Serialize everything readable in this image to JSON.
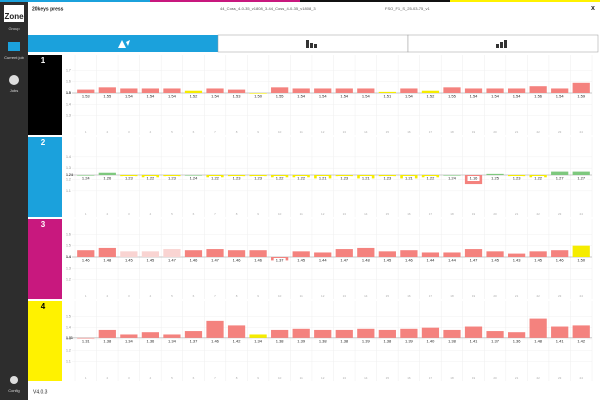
{
  "header": {
    "press": "20keys press",
    "file_1": "44_Coss_4-0-35_v1808_3-44_Coss_4-0-35_v1808_3",
    "file_2": "FSO_F1_S_25-03-75_v1",
    "close": "x"
  },
  "sidebar": {
    "logo": "Zone",
    "group": "Group",
    "current_job": "Current job",
    "jobs": "Jobs",
    "config": "Config",
    "version": "V4.0.3"
  },
  "zones": [
    1,
    2,
    3,
    4,
    5,
    6,
    7,
    8,
    9,
    10,
    11,
    12,
    13,
    14,
    15,
    16,
    17,
    18,
    19,
    20,
    21,
    22,
    23,
    24
  ],
  "bands": [
    {
      "label": "1",
      "color": "#000000",
      "target": 1.5,
      "ylim": [
        1.2,
        1.8
      ],
      "yticks": [
        1.3,
        1.4,
        1.5,
        1.6,
        1.7
      ],
      "values": [
        1.53,
        1.55,
        1.54,
        1.54,
        1.54,
        1.52,
        1.54,
        1.53,
        1.5,
        1.55,
        1.54,
        1.54,
        1.54,
        1.54,
        1.51,
        1.54,
        1.52,
        1.55,
        1.54,
        1.54,
        1.54,
        1.56,
        1.54,
        1.59
      ],
      "value_labels": [
        "1.53",
        "1.55",
        "1.54",
        "1.54",
        "1.54",
        "1.52",
        "1.54",
        "1.53",
        "1.50",
        "1.55",
        "1.54",
        "1.54",
        "1.54",
        "1.54",
        "1.51",
        "1.54",
        "1.52",
        "1.55",
        "1.54",
        "1.54",
        "1.54",
        "1.56",
        "1.54",
        "1.59"
      ],
      "bar_colors": [
        "#f4827e",
        "#f4827e",
        "#f4827e",
        "#f4827e",
        "#f4827e",
        "#f5ec00",
        "#f4827e",
        "#f4827e",
        "#f5ec00",
        "#f4827e",
        "#f4827e",
        "#f4827e",
        "#f4827e",
        "#f4827e",
        "#f5ec00",
        "#f4827e",
        "#f5ec00",
        "#f4827e",
        "#f4827e",
        "#f4827e",
        "#f4827e",
        "#f4827e",
        "#f4827e",
        "#f4827e"
      ]
    },
    {
      "label": "2",
      "color": "#1ba1dc",
      "target": 1.24,
      "ylim": [
        0.94,
        1.54
      ],
      "yticks": [
        1.1,
        1.2,
        1.3,
        1.4
      ],
      "values": [
        1.24,
        1.26,
        1.23,
        1.22,
        1.23,
        1.24,
        1.22,
        1.23,
        1.23,
        1.22,
        1.22,
        1.21,
        1.23,
        1.21,
        1.23,
        1.21,
        1.22,
        1.24,
        1.16,
        1.25,
        1.23,
        1.22,
        1.27,
        1.27
      ],
      "value_labels": [
        "1.24",
        "1.26",
        "1.23",
        "1.22",
        "1.23",
        "1.24",
        "1.22",
        "1.23",
        "1.23",
        "1.22",
        "1.22",
        "1.21",
        "1.23",
        "1.21",
        "1.23",
        "1.21",
        "1.22",
        "1.24",
        "1.16",
        "1.25",
        "1.23",
        "1.22",
        "1.27",
        "1.27"
      ],
      "bar_colors": [
        "#7ec87e",
        "#7ec87e",
        "#f5ec00",
        "#f5ec00",
        "#f5ec00",
        "#7ec87e",
        "#f5ec00",
        "#f5ec00",
        "#f5ec00",
        "#f5ec00",
        "#f5ec00",
        "#f5ec00",
        "#f5ec00",
        "#f5ec00",
        "#f5ec00",
        "#f5ec00",
        "#f5ec00",
        "#7ec87e",
        "#f4827e",
        "#7ec87e",
        "#f5ec00",
        "#f5ec00",
        "#7ec87e",
        "#7ec87e"
      ]
    },
    {
      "label": "3",
      "color": "#c8187e",
      "target": 1.4,
      "ylim": [
        1.1,
        1.7
      ],
      "yticks": [
        1.2,
        1.3,
        1.4,
        1.5,
        1.6
      ],
      "values": [
        1.46,
        1.48,
        1.45,
        1.45,
        1.47,
        1.46,
        1.47,
        1.46,
        1.46,
        1.37,
        1.45,
        1.44,
        1.47,
        1.48,
        1.45,
        1.46,
        1.44,
        1.44,
        1.47,
        1.45,
        1.43,
        1.45,
        1.46,
        1.5
      ],
      "value_labels": [
        "1.46",
        "1.48",
        "1.45",
        "1.45",
        "1.47",
        "1.46",
        "1.47",
        "1.46",
        "1.46",
        "1.37",
        "1.45",
        "1.44",
        "1.47",
        "1.48",
        "1.45",
        "1.46",
        "1.44",
        "1.44",
        "1.47",
        "1.45",
        "1.43",
        "1.45",
        "1.46",
        "1.50"
      ],
      "bar_colors": [
        "#f4827e",
        "#f4827e",
        "#f9d4d2",
        "#f9d4d2",
        "#f9d4d2",
        "#f4827e",
        "#f4827e",
        "#f4827e",
        "#f4827e",
        "#f4827e",
        "#f4827e",
        "#f4827e",
        "#f4827e",
        "#f4827e",
        "#f4827e",
        "#f4827e",
        "#f4827e",
        "#f4827e",
        "#f4827e",
        "#f4827e",
        "#f4827e",
        "#f4827e",
        "#f4827e",
        "#f5ec00"
      ]
    },
    {
      "label": "4",
      "color": "#fff200",
      "target": 1.31,
      "ylim": [
        1.0,
        1.6
      ],
      "yticks": [
        1.1,
        1.2,
        1.3,
        1.4,
        1.5
      ],
      "values": [
        1.31,
        1.38,
        1.34,
        1.36,
        1.34,
        1.37,
        1.46,
        1.42,
        1.34,
        1.38,
        1.39,
        1.38,
        1.38,
        1.39,
        1.38,
        1.39,
        1.4,
        1.38,
        1.41,
        1.37,
        1.36,
        1.48,
        1.41,
        1.42
      ],
      "value_labels": [
        "1.31",
        "1.38",
        "1.34",
        "1.36",
        "1.34",
        "1.37",
        "1.46",
        "1.42",
        "1.34",
        "1.38",
        "1.39",
        "1.38",
        "1.38",
        "1.39",
        "1.38",
        "1.39",
        "1.40",
        "1.38",
        "1.41",
        "1.37",
        "1.36",
        "1.48",
        "1.41",
        "1.42"
      ],
      "bar_colors": [
        "#f4827e",
        "#f4827e",
        "#f4827e",
        "#f4827e",
        "#f4827e",
        "#f4827e",
        "#f4827e",
        "#f4827e",
        "#f5ec00",
        "#f4827e",
        "#f4827e",
        "#f4827e",
        "#f4827e",
        "#f4827e",
        "#f4827e",
        "#f4827e",
        "#f4827e",
        "#f4827e",
        "#f4827e",
        "#f4827e",
        "#f4827e",
        "#f4827e",
        "#f4827e",
        "#f4827e"
      ]
    }
  ]
}
